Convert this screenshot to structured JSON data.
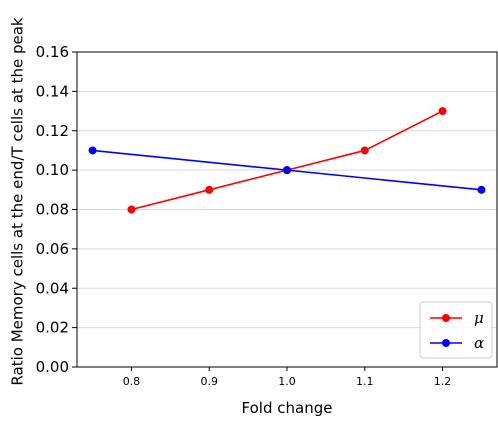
{
  "chart_data": {
    "type": "line",
    "title": "",
    "xlabel": "Fold change",
    "ylabel": "Ratio Memory cells at the end/T cells at the peak",
    "xlim": [
      0.73,
      1.27
    ],
    "ylim": [
      0.0,
      0.16
    ],
    "x_ticks": [
      0.8,
      0.9,
      1.0,
      1.1,
      1.2
    ],
    "x_tick_labels": [
      "0.8",
      "0.9",
      "1.0",
      "1.1",
      "1.2"
    ],
    "y_ticks": [
      0.0,
      0.02,
      0.04,
      0.06,
      0.08,
      0.1,
      0.12,
      0.14,
      0.16
    ],
    "y_tick_labels": [
      "0.00",
      "0.02",
      "0.04",
      "0.06",
      "0.08",
      "0.10",
      "0.12",
      "0.14",
      "0.16"
    ],
    "grid": "horizontal",
    "legend_position": "bottom-right",
    "series": [
      {
        "name": "μ",
        "color": "#ff0000",
        "x": [
          0.8,
          0.9,
          1.0,
          1.1,
          1.2
        ],
        "y": [
          0.08,
          0.09,
          0.1,
          0.11,
          0.13
        ]
      },
      {
        "name": "α",
        "color": "#0000ff",
        "x": [
          0.75,
          1.0,
          1.25
        ],
        "y": [
          0.11,
          0.1,
          0.09
        ]
      }
    ]
  }
}
